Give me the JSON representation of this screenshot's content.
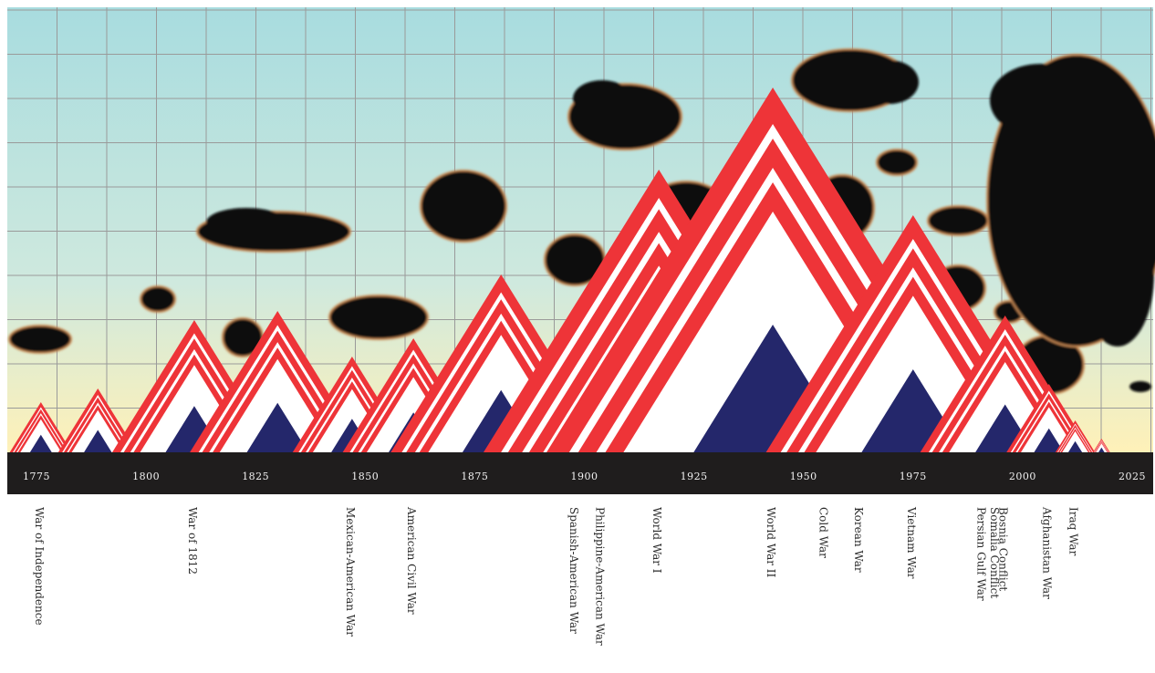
{
  "timeline": {
    "years": [
      "1775",
      "1800",
      "1825",
      "1850",
      "1875",
      "1900",
      "1925",
      "1950",
      "1975",
      "2000",
      "2025"
    ],
    "year_values": [
      1775,
      1800,
      1825,
      1850,
      1875,
      1900,
      1925,
      1950,
      1975,
      2000,
      2025
    ],
    "range": [
      1767,
      2030
    ]
  },
  "colors": {
    "sky_top": "#a8dcdf",
    "sky_mid": "#cfe9de",
    "sky_bottom": "#fff1b8",
    "grid": "#9a9a9a",
    "stripe_red": "#ee3438",
    "stripe_white": "#ffffff",
    "core_blue": "#24276b",
    "timeline_bar": "#1f1d1d",
    "smoke": "#0b0b0b"
  },
  "wars": [
    {
      "label": "War of Independence",
      "year": 1776,
      "size": 0.55
    },
    {
      "label": "",
      "year": 1789,
      "size": 0.7
    },
    {
      "label": "War of 1812",
      "year": 1811,
      "size": 1.45
    },
    {
      "label": "",
      "year": 1830,
      "size": 1.55
    },
    {
      "label": "Mexican-American War",
      "year": 1847,
      "size": 1.05
    },
    {
      "label": "American Civil War",
      "year": 1861,
      "size": 1.25
    },
    {
      "label": "",
      "year": 1871,
      "size": 0.6
    },
    {
      "label": "",
      "year": 1881,
      "size": 1.95
    },
    {
      "label": "Spanish-American War",
      "year": 1898,
      "size": 0.4
    },
    {
      "label": "Philippine-American War",
      "year": 1904,
      "size": 0.6
    },
    {
      "label": "World War I",
      "year": 1917,
      "size": 3.1
    },
    {
      "label": "World War II",
      "year": 1943,
      "size": 4.0
    },
    {
      "label": "Cold War",
      "year": 1955,
      "size": 0.4
    },
    {
      "label": "Korean War",
      "year": 1963,
      "size": 0.4
    },
    {
      "label": "Vietnam War",
      "year": 1975,
      "size": 2.6
    },
    {
      "label": "Persian Gulf War",
      "year": 1991,
      "size": 0.4
    },
    {
      "label": "Somalia Conflict",
      "year": 1994,
      "size": 0.4
    },
    {
      "label": "Bosnia Conflict",
      "year": 1996,
      "size": 1.5
    },
    {
      "label": "Afghanistan War",
      "year": 2006,
      "size": 0.75
    },
    {
      "label": "Iraq War",
      "year": 2012,
      "size": 0.35
    },
    {
      "label": "",
      "year": 2018,
      "size": 0.15
    }
  ],
  "war_label_positions": [
    1776,
    1811,
    1847,
    1861,
    1898,
    1904,
    1917,
    1943,
    1955,
    1963,
    1975,
    1991,
    1994,
    1996,
    2006,
    2012
  ]
}
